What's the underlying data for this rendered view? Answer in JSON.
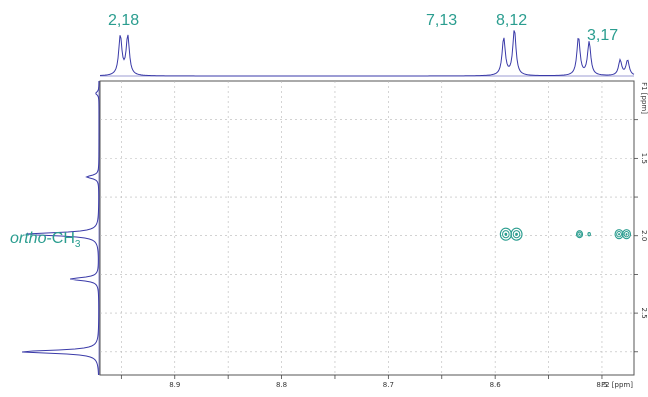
{
  "chart_data": {
    "type": "scatter",
    "subtype": "2D NMR contour spectrum (heteronuclear correlation) with projections",
    "x_axis": {
      "label": "F2 [ppm]",
      "direction": "reversed",
      "range": [
        8.97,
        8.47
      ],
      "tick_labels": [
        "8.9",
        "8.8",
        "8.7",
        "8.6",
        "8.5"
      ]
    },
    "y_axis": {
      "label": "F1 [ppm]",
      "range": [
        1.0,
        2.9
      ],
      "tick_labels": [
        "1.5",
        "2.0",
        "2.5"
      ]
    },
    "grid": true,
    "top_projection_peaks": [
      {
        "x": 8.951,
        "label": "2,18"
      },
      {
        "x": 8.944
      },
      {
        "x": 8.592,
        "label": "7,13"
      },
      {
        "x": 8.582
      },
      {
        "x": 8.522,
        "label": "8,12"
      },
      {
        "x": 8.512
      },
      {
        "x": 8.483,
        "label": "3,17"
      },
      {
        "x": 8.476
      }
    ],
    "left_projection_peaks": [
      {
        "y": 1.08,
        "intensity": 0.04
      },
      {
        "y": 1.62,
        "intensity": 0.15
      },
      {
        "y": 1.99,
        "intensity": 0.9,
        "label": "ortho-CH3"
      },
      {
        "y": 2.28,
        "intensity": 0.35
      },
      {
        "y": 2.75,
        "intensity": 0.95
      }
    ],
    "cross_peaks": [
      {
        "x": 8.59,
        "y": 1.99,
        "size": "large"
      },
      {
        "x": 8.58,
        "y": 1.99,
        "size": "large"
      },
      {
        "x": 8.521,
        "y": 1.99,
        "size": "small"
      },
      {
        "x": 8.512,
        "y": 1.99,
        "size": "tiny"
      },
      {
        "x": 8.484,
        "y": 1.99,
        "size": "medium"
      },
      {
        "x": 8.477,
        "y": 1.99,
        "size": "medium"
      }
    ],
    "colors": {
      "projection": "#3a3aa8",
      "contour": "#2a9d8f",
      "label": "#2a9d8f",
      "grid": "#b8b8b8"
    }
  },
  "labels": {
    "peak_2_18": "2,18",
    "peak_7_13": "7,13",
    "peak_8_12": "8,12",
    "peak_3_17": "3,17",
    "ortho_prefix": "ortho",
    "ortho_main": "-CH",
    "ortho_sub": "3"
  }
}
